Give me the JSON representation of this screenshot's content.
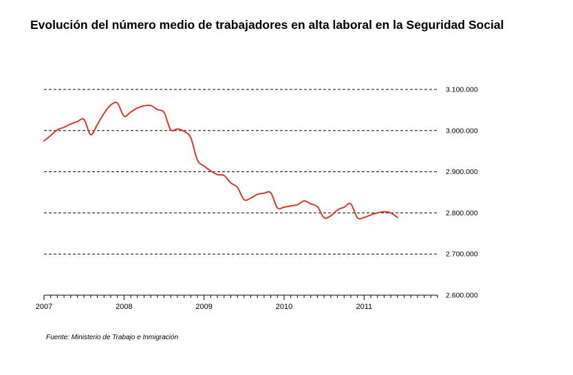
{
  "chart_data": {
    "type": "line",
    "title": "Evolución del número medio de trabajadores en alta laboral en la Seguridad Social",
    "source": "Fuente: Ministerio de Trabajo e Inmigración",
    "xlabel": "",
    "ylabel": "",
    "x_ticks": [
      "2007",
      "2008",
      "2009",
      "2010",
      "2011"
    ],
    "y_ticks": [
      "3.100.000",
      "3.000.000",
      "2.900.000",
      "2.800.000",
      "2.700.000",
      "2.600.000"
    ],
    "xlim": [
      2007.0,
      2011.9167
    ],
    "ylim": [
      2600000,
      3100000
    ],
    "grid": "horizontal-dashed",
    "y_axis_side": "right",
    "line_color": "#d9372a",
    "series": [
      {
        "values": [
          [
            2007.0,
            2975000
          ],
          [
            2007.083,
            2988000
          ],
          [
            2007.167,
            3002000
          ],
          [
            2007.25,
            3008000
          ],
          [
            2007.333,
            3016000
          ],
          [
            2007.417,
            3022000
          ],
          [
            2007.5,
            3027000
          ],
          [
            2007.583,
            2990000
          ],
          [
            2007.667,
            3015000
          ],
          [
            2007.75,
            3042000
          ],
          [
            2007.833,
            3062000
          ],
          [
            2007.917,
            3067000
          ],
          [
            2008.0,
            3035000
          ],
          [
            2008.083,
            3045000
          ],
          [
            2008.167,
            3055000
          ],
          [
            2008.25,
            3060000
          ],
          [
            2008.333,
            3061000
          ],
          [
            2008.417,
            3051000
          ],
          [
            2008.5,
            3044000
          ],
          [
            2008.583,
            3002000
          ],
          [
            2008.667,
            3004000
          ],
          [
            2008.75,
            2998000
          ],
          [
            2008.833,
            2983000
          ],
          [
            2008.917,
            2928000
          ],
          [
            2009.0,
            2914000
          ],
          [
            2009.083,
            2902000
          ],
          [
            2009.167,
            2893000
          ],
          [
            2009.25,
            2891000
          ],
          [
            2009.333,
            2873000
          ],
          [
            2009.417,
            2862000
          ],
          [
            2009.5,
            2832000
          ],
          [
            2009.583,
            2836000
          ],
          [
            2009.667,
            2845000
          ],
          [
            2009.75,
            2848000
          ],
          [
            2009.833,
            2849000
          ],
          [
            2009.917,
            2812000
          ],
          [
            2010.0,
            2814000
          ],
          [
            2010.083,
            2817000
          ],
          [
            2010.167,
            2820000
          ],
          [
            2010.25,
            2829000
          ],
          [
            2010.333,
            2822000
          ],
          [
            2010.417,
            2815000
          ],
          [
            2010.5,
            2788000
          ],
          [
            2010.583,
            2793000
          ],
          [
            2010.667,
            2807000
          ],
          [
            2010.75,
            2814000
          ],
          [
            2010.833,
            2822000
          ],
          [
            2010.917,
            2788000
          ],
          [
            2011.0,
            2789000
          ],
          [
            2011.083,
            2795000
          ],
          [
            2011.167,
            2800000
          ],
          [
            2011.25,
            2803000
          ],
          [
            2011.333,
            2800000
          ],
          [
            2011.417,
            2789000
          ]
        ]
      }
    ]
  }
}
